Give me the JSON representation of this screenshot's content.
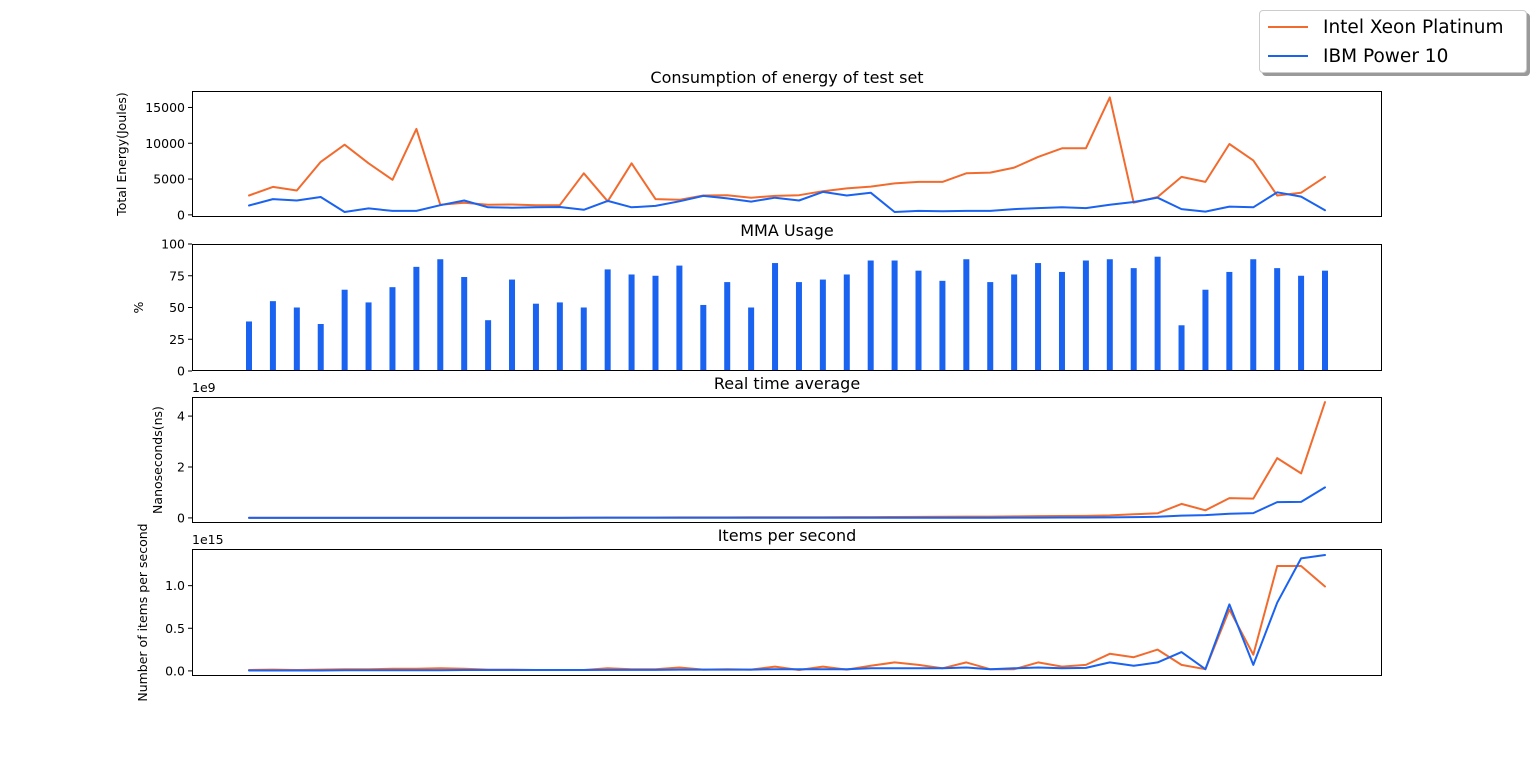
{
  "colors": {
    "intel": "#f26b2e",
    "ibm": "#1a62f0",
    "bar": "#1a62f0"
  },
  "legend": {
    "placement": "top-right",
    "items": [
      {
        "label": "Intel Xeon Platinum",
        "color": "#f26b2e"
      },
      {
        "label": "IBM Power 10",
        "color": "#1a62f0"
      }
    ]
  },
  "chart_data": [
    {
      "type": "line",
      "title": "Consumption of energy of test set",
      "ylabel": "Total Energy(Joules)",
      "ylim": [
        -300,
        17300
      ],
      "yticks": [
        0,
        5000,
        10000,
        15000
      ],
      "ytick_labels": [
        "0",
        "5000",
        "10000",
        "15000"
      ],
      "offset_label": "",
      "grid": false,
      "series": [
        {
          "name": "Intel Xeon Platinum",
          "color": "#f26b2e",
          "values": [
            2700,
            3900,
            3400,
            7400,
            9800,
            7200,
            4900,
            12000,
            1400,
            1700,
            1400,
            1450,
            1350,
            1350,
            5800,
            1900,
            7200,
            2200,
            2100,
            2700,
            2750,
            2400,
            2650,
            2750,
            3300,
            3700,
            3950,
            4400,
            4600,
            4600,
            5800,
            5900,
            6600,
            8100,
            9300,
            9300,
            16400,
            1700,
            2500,
            5300,
            4600,
            9900,
            7600,
            2700,
            3100,
            5300
          ]
        },
        {
          "name": "IBM Power 10",
          "color": "#1a62f0",
          "values": [
            1300,
            2200,
            2000,
            2500,
            400,
            900,
            550,
            550,
            1350,
            2000,
            1050,
            1000,
            1050,
            1100,
            700,
            1950,
            1050,
            1250,
            1900,
            2650,
            2300,
            1850,
            2400,
            2000,
            3200,
            2700,
            3100,
            400,
            550,
            500,
            550,
            550,
            800,
            950,
            1050,
            950,
            1400,
            1800,
            2400,
            800,
            450,
            1150,
            1050,
            3150,
            2550,
            650
          ]
        }
      ]
    },
    {
      "type": "bar",
      "title": "MMA Usage",
      "ylabel": "%",
      "ylim": [
        0,
        100
      ],
      "yticks": [
        0,
        25,
        50,
        75,
        100
      ],
      "ytick_labels": [
        "0",
        "25",
        "50",
        "75",
        "100"
      ],
      "offset_label": "",
      "grid": false,
      "series": [
        {
          "name": "",
          "color": "#1a62f0",
          "values": [
            39,
            55,
            50,
            37,
            64,
            54,
            66,
            82,
            88,
            74,
            40,
            72,
            53,
            54,
            50,
            80,
            76,
            75,
            83,
            52,
            70,
            50,
            85,
            70,
            72,
            76,
            87,
            87,
            79,
            71,
            88,
            70,
            76,
            85,
            78,
            87,
            88,
            81,
            90,
            36,
            64,
            78,
            88,
            81,
            75,
            79
          ]
        }
      ]
    },
    {
      "type": "line",
      "title": "Real time average",
      "ylabel": "Nanoseconds(ns)",
      "ylim": [
        -0.2,
        4.75
      ],
      "yticks": [
        0,
        2,
        4
      ],
      "ytick_labels": [
        "0",
        "2",
        "4"
      ],
      "offset_label": "1e9",
      "grid": false,
      "series": [
        {
          "name": "Intel Xeon Platinum",
          "color": "#f26b2e",
          "values": [
            0.005,
            0.005,
            0.005,
            0.005,
            0.005,
            0.005,
            0.005,
            0.005,
            0.006,
            0.008,
            0.008,
            0.008,
            0.008,
            0.01,
            0.012,
            0.015,
            0.015,
            0.018,
            0.02,
            0.02,
            0.02,
            0.022,
            0.025,
            0.025,
            0.028,
            0.03,
            0.032,
            0.035,
            0.04,
            0.045,
            0.05,
            0.05,
            0.06,
            0.07,
            0.075,
            0.08,
            0.1,
            0.14,
            0.18,
            0.55,
            0.3,
            0.78,
            0.76,
            2.35,
            1.75,
            4.55
          ]
        },
        {
          "name": "IBM Power 10",
          "color": "#1a62f0",
          "values": [
            0.001,
            0.001,
            0.001,
            0.001,
            0.001,
            0.001,
            0.001,
            0.001,
            0.001,
            0.002,
            0.002,
            0.002,
            0.002,
            0.002,
            0.003,
            0.003,
            0.003,
            0.003,
            0.004,
            0.004,
            0.004,
            0.004,
            0.005,
            0.005,
            0.005,
            0.006,
            0.006,
            0.007,
            0.008,
            0.008,
            0.009,
            0.01,
            0.012,
            0.014,
            0.016,
            0.018,
            0.02,
            0.03,
            0.045,
            0.09,
            0.11,
            0.16,
            0.19,
            0.62,
            0.63,
            1.2
          ]
        }
      ]
    },
    {
      "type": "line",
      "title": "Items per second",
      "ylabel": "Number of items per second",
      "ylim": [
        -0.06,
        1.43
      ],
      "yticks": [
        0,
        0.5,
        1.0
      ],
      "ytick_labels": [
        "0.0",
        "0.5",
        "1.0"
      ],
      "offset_label": "1e15",
      "grid": false,
      "series": [
        {
          "name": "Intel Xeon Platinum",
          "color": "#f26b2e",
          "values": [
            0.01,
            0.015,
            0.01,
            0.015,
            0.02,
            0.02,
            0.025,
            0.025,
            0.03,
            0.025,
            0.015,
            0.015,
            0.01,
            0.01,
            0.01,
            0.03,
            0.02,
            0.02,
            0.04,
            0.015,
            0.02,
            0.015,
            0.05,
            0.01,
            0.05,
            0.015,
            0.06,
            0.1,
            0.07,
            0.03,
            0.1,
            0.02,
            0.02,
            0.1,
            0.05,
            0.07,
            0.2,
            0.16,
            0.25,
            0.07,
            0.02,
            0.72,
            0.19,
            1.23,
            1.23,
            0.99
          ]
        },
        {
          "name": "IBM Power 10",
          "color": "#1a62f0",
          "values": [
            0.005,
            0.005,
            0.005,
            0.005,
            0.008,
            0.008,
            0.008,
            0.008,
            0.008,
            0.01,
            0.01,
            0.01,
            0.01,
            0.01,
            0.01,
            0.012,
            0.012,
            0.012,
            0.015,
            0.015,
            0.015,
            0.015,
            0.02,
            0.02,
            0.02,
            0.02,
            0.03,
            0.03,
            0.03,
            0.03,
            0.04,
            0.02,
            0.03,
            0.04,
            0.03,
            0.035,
            0.1,
            0.06,
            0.1,
            0.22,
            0.02,
            0.78,
            0.07,
            0.8,
            1.32,
            1.36
          ]
        }
      ]
    }
  ]
}
